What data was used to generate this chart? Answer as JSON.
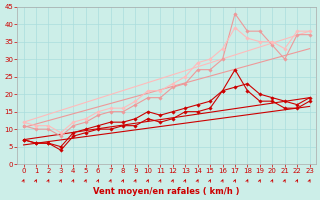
{
  "xlabel": "Vent moyen/en rafales ( km/h )",
  "bg_color": "#cceee8",
  "grid_color": "#aadddd",
  "xlim": [
    -0.5,
    23.5
  ],
  "ylim": [
    0,
    45
  ],
  "yticks": [
    0,
    5,
    10,
    15,
    20,
    25,
    30,
    35,
    40,
    45
  ],
  "xticks": [
    0,
    1,
    2,
    3,
    4,
    5,
    6,
    7,
    8,
    9,
    10,
    11,
    12,
    13,
    14,
    15,
    16,
    17,
    18,
    19,
    20,
    21,
    22,
    23
  ],
  "lines": [
    {
      "x": [
        0,
        23
      ],
      "y": [
        5.5,
        16.5
      ],
      "color": "#cc0000",
      "lw": 0.8,
      "marker": null,
      "ms": 0,
      "zorder": 2
    },
    {
      "x": [
        0,
        23
      ],
      "y": [
        7.0,
        19.0
      ],
      "color": "#cc0000",
      "lw": 0.8,
      "marker": null,
      "ms": 0,
      "zorder": 2
    },
    {
      "x": [
        0,
        23
      ],
      "y": [
        10.5,
        33.0
      ],
      "color": "#ee9999",
      "lw": 0.8,
      "marker": null,
      "ms": 0,
      "zorder": 2
    },
    {
      "x": [
        0,
        23
      ],
      "y": [
        12.0,
        38.0
      ],
      "color": "#ffbbbb",
      "lw": 0.8,
      "marker": null,
      "ms": 0,
      "zorder": 2
    },
    {
      "x": [
        0,
        1,
        2,
        3,
        4,
        5,
        6,
        7,
        8,
        9,
        10,
        11,
        12,
        13,
        14,
        15,
        16,
        17,
        18,
        19,
        20,
        21,
        22,
        23
      ],
      "y": [
        7,
        6,
        6,
        4,
        8,
        9,
        10,
        10,
        11,
        11,
        13,
        12,
        13,
        15,
        15,
        16,
        21,
        27,
        21,
        18,
        18,
        16,
        16,
        18
      ],
      "color": "#cc0000",
      "lw": 0.8,
      "marker": "D",
      "ms": 1.8,
      "zorder": 3
    },
    {
      "x": [
        0,
        1,
        2,
        3,
        4,
        5,
        6,
        7,
        8,
        9,
        10,
        11,
        12,
        13,
        14,
        15,
        16,
        17,
        18,
        19,
        20,
        21,
        22,
        23
      ],
      "y": [
        7,
        6,
        6,
        5,
        9,
        10,
        11,
        12,
        12,
        13,
        15,
        14,
        15,
        16,
        17,
        18,
        21,
        22,
        23,
        20,
        19,
        18,
        17,
        19
      ],
      "color": "#cc0000",
      "lw": 0.8,
      "marker": "D",
      "ms": 1.8,
      "zorder": 3
    },
    {
      "x": [
        0,
        1,
        2,
        3,
        4,
        5,
        6,
        7,
        8,
        9,
        10,
        11,
        12,
        13,
        14,
        15,
        16,
        17,
        18,
        19,
        20,
        21,
        22,
        23
      ],
      "y": [
        11,
        10,
        10,
        8,
        11,
        12,
        14,
        15,
        15,
        17,
        19,
        19,
        22,
        23,
        27,
        27,
        30,
        43,
        38,
        38,
        34,
        30,
        37,
        37
      ],
      "color": "#ee9999",
      "lw": 0.8,
      "marker": "D",
      "ms": 1.8,
      "zorder": 3
    },
    {
      "x": [
        0,
        1,
        2,
        3,
        4,
        5,
        6,
        7,
        8,
        9,
        10,
        11,
        12,
        13,
        14,
        15,
        16,
        17,
        18,
        19,
        20,
        21,
        22,
        23
      ],
      "y": [
        12,
        11,
        11,
        9,
        12,
        13,
        15,
        16,
        16,
        18,
        21,
        21,
        23,
        25,
        29,
        30,
        33,
        39,
        36,
        35,
        35,
        33,
        38,
        38
      ],
      "color": "#ffbbbb",
      "lw": 0.8,
      "marker": "D",
      "ms": 1.8,
      "zorder": 3
    }
  ],
  "arrow_color": "#cc0000",
  "tick_color": "#cc0000",
  "tick_fontsize": 5,
  "xlabel_fontsize": 6,
  "xlabel_color": "#cc0000",
  "xlabel_fontweight": "bold"
}
